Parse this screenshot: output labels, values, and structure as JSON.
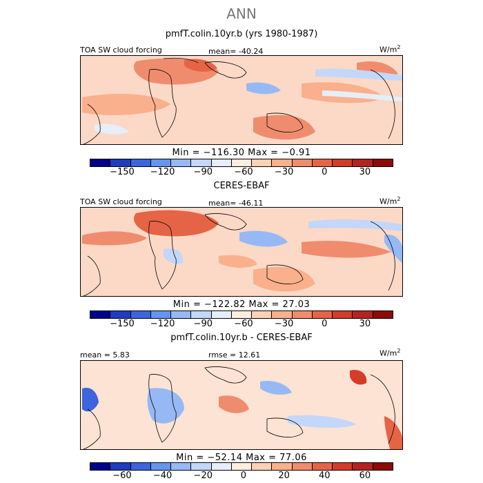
{
  "title": "ANN",
  "colorbar_colors": [
    "#00008c",
    "#1e3cbe",
    "#3c64dc",
    "#6496f0",
    "#96b9f5",
    "#c3d7fa",
    "#e6eefa",
    "#fdeee0",
    "#fcd2b4",
    "#fab08c",
    "#f08c6e",
    "#e66446",
    "#d23c28",
    "#b4231e",
    "#8c0a0a"
  ],
  "map_colors": {
    "land_line": "#000000",
    "ocean_light": "#fde3d3"
  },
  "panels": [
    {
      "title": "pmfT.colin.10yr.b (yrs 1980-1987)",
      "left_label": "TOA SW cloud forcing",
      "center_label": "mean=  -40.24",
      "units": "W/m",
      "units_sup": "2",
      "minmax": "Min = −116.30  Max =   −0.91",
      "tick_labels": [
        "−150",
        "−120",
        "−90",
        "−60",
        "−30",
        "0",
        "30"
      ]
    },
    {
      "title": "CERES-EBAF",
      "left_label": "TOA SW cloud forcing",
      "center_label": "mean=  -46.11",
      "units": "W/m",
      "units_sup": "2",
      "minmax": "Min = −122.82  Max =   27.03",
      "tick_labels": [
        "−150",
        "−120",
        "−90",
        "−60",
        "−30",
        "0",
        "30"
      ]
    },
    {
      "title": "pmfT.colin.10yr.b - CERES-EBAF",
      "left_label": "mean =    5.83",
      "center_label": "rmse =  12.61",
      "units": "W/m",
      "units_sup": "2",
      "minmax": "Min = −52.14  Max =   77.06",
      "tick_labels": [
        "−60",
        "−40",
        "−20",
        "0",
        "20",
        "40",
        "60"
      ]
    }
  ],
  "chart_data": [
    {
      "type": "heatmap",
      "title": "pmfT.colin.10yr.b (yrs 1980-1987)",
      "variable": "TOA SW cloud forcing",
      "units": "W/m2",
      "mean": -40.24,
      "min": -116.3,
      "max": -0.91,
      "contour_levels": [
        -150,
        -140,
        -130,
        -120,
        -110,
        -100,
        -90,
        -80,
        -70,
        -60,
        -50,
        -40,
        -30,
        -20,
        -10,
        0,
        10,
        20,
        30,
        40,
        50
      ],
      "colorbar_ticks": [
        -150,
        -120,
        -90,
        -60,
        -30,
        0,
        30
      ]
    },
    {
      "type": "heatmap",
      "title": "CERES-EBAF",
      "variable": "TOA SW cloud forcing",
      "units": "W/m2",
      "mean": -46.11,
      "min": -122.82,
      "max": 27.03,
      "colorbar_ticks": [
        -150,
        -120,
        -90,
        -60,
        -30,
        0,
        30
      ]
    },
    {
      "type": "heatmap",
      "title": "pmfT.colin.10yr.b - CERES-EBAF",
      "units": "W/m2",
      "mean": 5.83,
      "rmse": 12.61,
      "min": -52.14,
      "max": 77.06,
      "colorbar_ticks": [
        -60,
        -40,
        -20,
        0,
        20,
        40,
        60
      ]
    }
  ]
}
